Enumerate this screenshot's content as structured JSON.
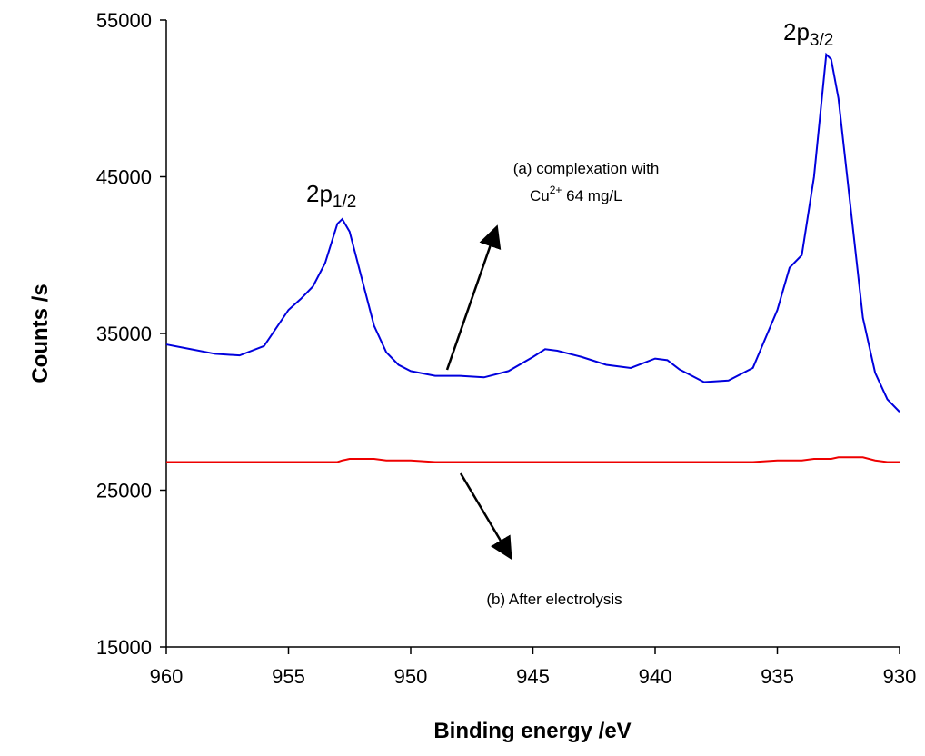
{
  "chart_data": {
    "type": "line",
    "x_label": "Binding energy /eV",
    "y_label": "Counts /s",
    "x": [
      960,
      959,
      958,
      957,
      956,
      955,
      954.5,
      954,
      953.5,
      953,
      952.8,
      952.5,
      952,
      951.5,
      951,
      950.5,
      950,
      949,
      948,
      947,
      946,
      945,
      944.5,
      944,
      943,
      942,
      941,
      940,
      939.5,
      939,
      938,
      937,
      936,
      935,
      934.5,
      934,
      933.5,
      933,
      932.8,
      932.5,
      932,
      931.5,
      931,
      930.5,
      930
    ],
    "series": [
      {
        "color": "#0000dd",
        "values": [
          34300,
          34000,
          33700,
          33600,
          34200,
          36500,
          37200,
          38000,
          39500,
          42000,
          42300,
          41500,
          38500,
          35500,
          33800,
          33000,
          32600,
          32300,
          32300,
          32200,
          32600,
          33500,
          34000,
          33900,
          33500,
          33000,
          32800,
          33400,
          33300,
          32700,
          31900,
          32000,
          32800,
          36500,
          39200,
          40000,
          45000,
          52800,
          52500,
          50000,
          43000,
          36000,
          32500,
          30800,
          30000
        ]
      },
      {
        "color": "#ee0000",
        "values": [
          26800,
          26800,
          26800,
          26800,
          26800,
          26800,
          26800,
          26800,
          26800,
          26800,
          26900,
          27000,
          27000,
          27000,
          26900,
          26900,
          26900,
          26800,
          26800,
          26800,
          26800,
          26800,
          26800,
          26800,
          26800,
          26800,
          26800,
          26800,
          26800,
          26800,
          26800,
          26800,
          26800,
          26900,
          26900,
          26900,
          27000,
          27000,
          27000,
          27100,
          27100,
          27100,
          26900,
          26800,
          26800
        ]
      }
    ],
    "xlim": [
      960,
      930
    ],
    "xticks": [
      960,
      955,
      950,
      945,
      940,
      935,
      930
    ],
    "ylim": [
      15000,
      55000
    ],
    "yticks": [
      15000,
      25000,
      35000,
      45000,
      55000
    ],
    "peak_labels": [
      {
        "text": "2p",
        "sub": "1/2"
      },
      {
        "text": "2p",
        "sub": "3/2"
      }
    ],
    "note_a": {
      "line1": "(a) complexation with",
      "line2": [
        "Cu",
        "2+",
        " 64 mg/L"
      ]
    },
    "note_b": "(b) After electrolysis"
  }
}
